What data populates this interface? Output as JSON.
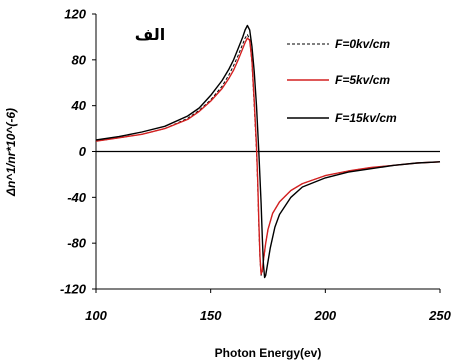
{
  "chart_data": {
    "type": "line",
    "xlabel": "Photon Energy(ev)",
    "ylabel": "Δn^1/nr*10^(-6)",
    "xlim": [
      100,
      250
    ],
    "ylim": [
      -120,
      120
    ],
    "x_ticks": [
      100,
      150,
      200,
      250
    ],
    "y_ticks": [
      120,
      80,
      40,
      0,
      -40,
      -80,
      -120
    ],
    "annotation": "الف",
    "legend_position": "top-right",
    "grid": false,
    "series": [
      {
        "name": "F=0kv/cm",
        "color": "#000000",
        "style": "dashed",
        "x": [
          100,
          110,
          120,
          130,
          140,
          145,
          150,
          155,
          158,
          160,
          162,
          164,
          165,
          166,
          167,
          168,
          169,
          170,
          170.5,
          171,
          171.5,
          172,
          172.5,
          173,
          174,
          175,
          177,
          180,
          185,
          190,
          200,
          210,
          220,
          230,
          240,
          250
        ],
        "y": [
          9,
          12,
          15,
          20,
          29,
          36,
          45,
          57,
          67,
          75,
          84,
          94,
          99,
          102,
          98,
          78,
          40,
          0,
          -30,
          -65,
          -95,
          -108,
          -105,
          -96,
          -80,
          -68,
          -54,
          -44,
          -34,
          -28,
          -21,
          -17,
          -14,
          -12,
          -10,
          -9
        ]
      },
      {
        "name": "F=5kv/cm",
        "color": "#d42020",
        "style": "solid",
        "x": [
          100,
          110,
          120,
          130,
          140,
          145,
          150,
          155,
          158,
          160,
          162,
          164,
          165,
          166,
          167,
          168,
          169,
          170,
          170.5,
          171,
          171.5,
          172,
          172.5,
          173,
          174,
          175,
          177,
          180,
          185,
          190,
          200,
          210,
          220,
          230,
          240,
          250
        ],
        "y": [
          9,
          12,
          15,
          20,
          28,
          35,
          44,
          55,
          64,
          71,
          80,
          90,
          95,
          99,
          97,
          80,
          45,
          5,
          -25,
          -60,
          -92,
          -107,
          -104,
          -95,
          -80,
          -68,
          -54,
          -44,
          -34,
          -28,
          -21,
          -17,
          -14,
          -12,
          -10,
          -9
        ]
      },
      {
        "name": "F=15kv/cm",
        "color": "#000000",
        "style": "solid",
        "x": [
          100,
          110,
          120,
          130,
          140,
          145,
          150,
          155,
          158,
          160,
          162,
          164,
          165,
          166,
          167,
          168,
          169,
          170,
          171,
          172,
          172.5,
          173,
          173.5,
          174,
          175,
          176,
          178,
          180,
          185,
          190,
          200,
          210,
          220,
          230,
          240,
          250
        ],
        "y": [
          10,
          13,
          17,
          22,
          31,
          38,
          49,
          62,
          72,
          80,
          90,
          100,
          106,
          110,
          106,
          92,
          70,
          40,
          0,
          -45,
          -75,
          -98,
          -110,
          -108,
          -96,
          -84,
          -66,
          -55,
          -40,
          -31,
          -23,
          -18,
          -15,
          -12,
          -10,
          -9
        ]
      }
    ]
  }
}
